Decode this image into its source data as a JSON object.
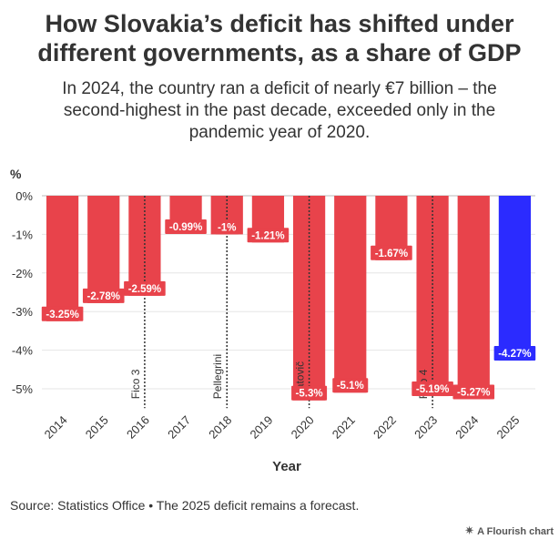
{
  "header": {
    "title_lines": [
      "How Slovakia’s deficit has shifted under",
      "different governments, as a share of GDP"
    ],
    "subtitle_lines": [
      "In 2024, the country ran a deficit of nearly €7 billion – the",
      "second-highest in the past decade, exceeded only in the",
      "pandemic year of 2020."
    ]
  },
  "chart_data": {
    "type": "bar",
    "title": "How Slovakia’s deficit has shifted under different governments, as a share of GDP",
    "subtitle": "In 2024, the country ran a deficit of nearly €7 billion – the second-highest in the past decade, exceeded only in the pandemic year of 2020.",
    "ylabel": "%",
    "xlabel": "Year",
    "categories": [
      "2014",
      "2015",
      "2016",
      "2017",
      "2018",
      "2019",
      "2020",
      "2021",
      "2022",
      "2023",
      "2024",
      "2025"
    ],
    "values": [
      -3.25,
      -2.78,
      -2.59,
      -0.99,
      -1,
      -1.21,
      -5.3,
      -5.1,
      -1.67,
      -5.19,
      -5.27,
      -4.27
    ],
    "data_labels": [
      "-3.25%",
      "-2.78%",
      "-2.59%",
      "-0.99%",
      "-1%",
      "-1.21%",
      "-5.3%",
      "-5.1%",
      "-1.67%",
      "-5.19%",
      "-5.27%",
      "-4.27%"
    ],
    "y_ticks": [
      0,
      -1,
      -2,
      -3,
      -4,
      -5
    ],
    "y_tick_labels": [
      "0%",
      "-1%",
      "-2%",
      "-3%",
      "-4%",
      "-5%"
    ],
    "ylim": [
      -5.5,
      0
    ],
    "bar_colors": [
      "#e8434b",
      "#e8434b",
      "#e8434b",
      "#e8434b",
      "#e8434b",
      "#e8434b",
      "#e8434b",
      "#e8434b",
      "#e8434b",
      "#e8434b",
      "#e8434b",
      "#2b2bff"
    ],
    "grid": true,
    "annotations": [
      {
        "x": "2016",
        "text": "Fico 3"
      },
      {
        "x": "2018",
        "text": "Pellegrini"
      },
      {
        "x": "2020",
        "text": "Matovič"
      },
      {
        "x": "2023",
        "text": "Fico 4"
      }
    ]
  },
  "footer": {
    "source": "Source: Statistics Office • The 2025 deficit remains a forecast.",
    "credit": "A Flourish chart",
    "credit_icon": "flourish-star-icon"
  }
}
